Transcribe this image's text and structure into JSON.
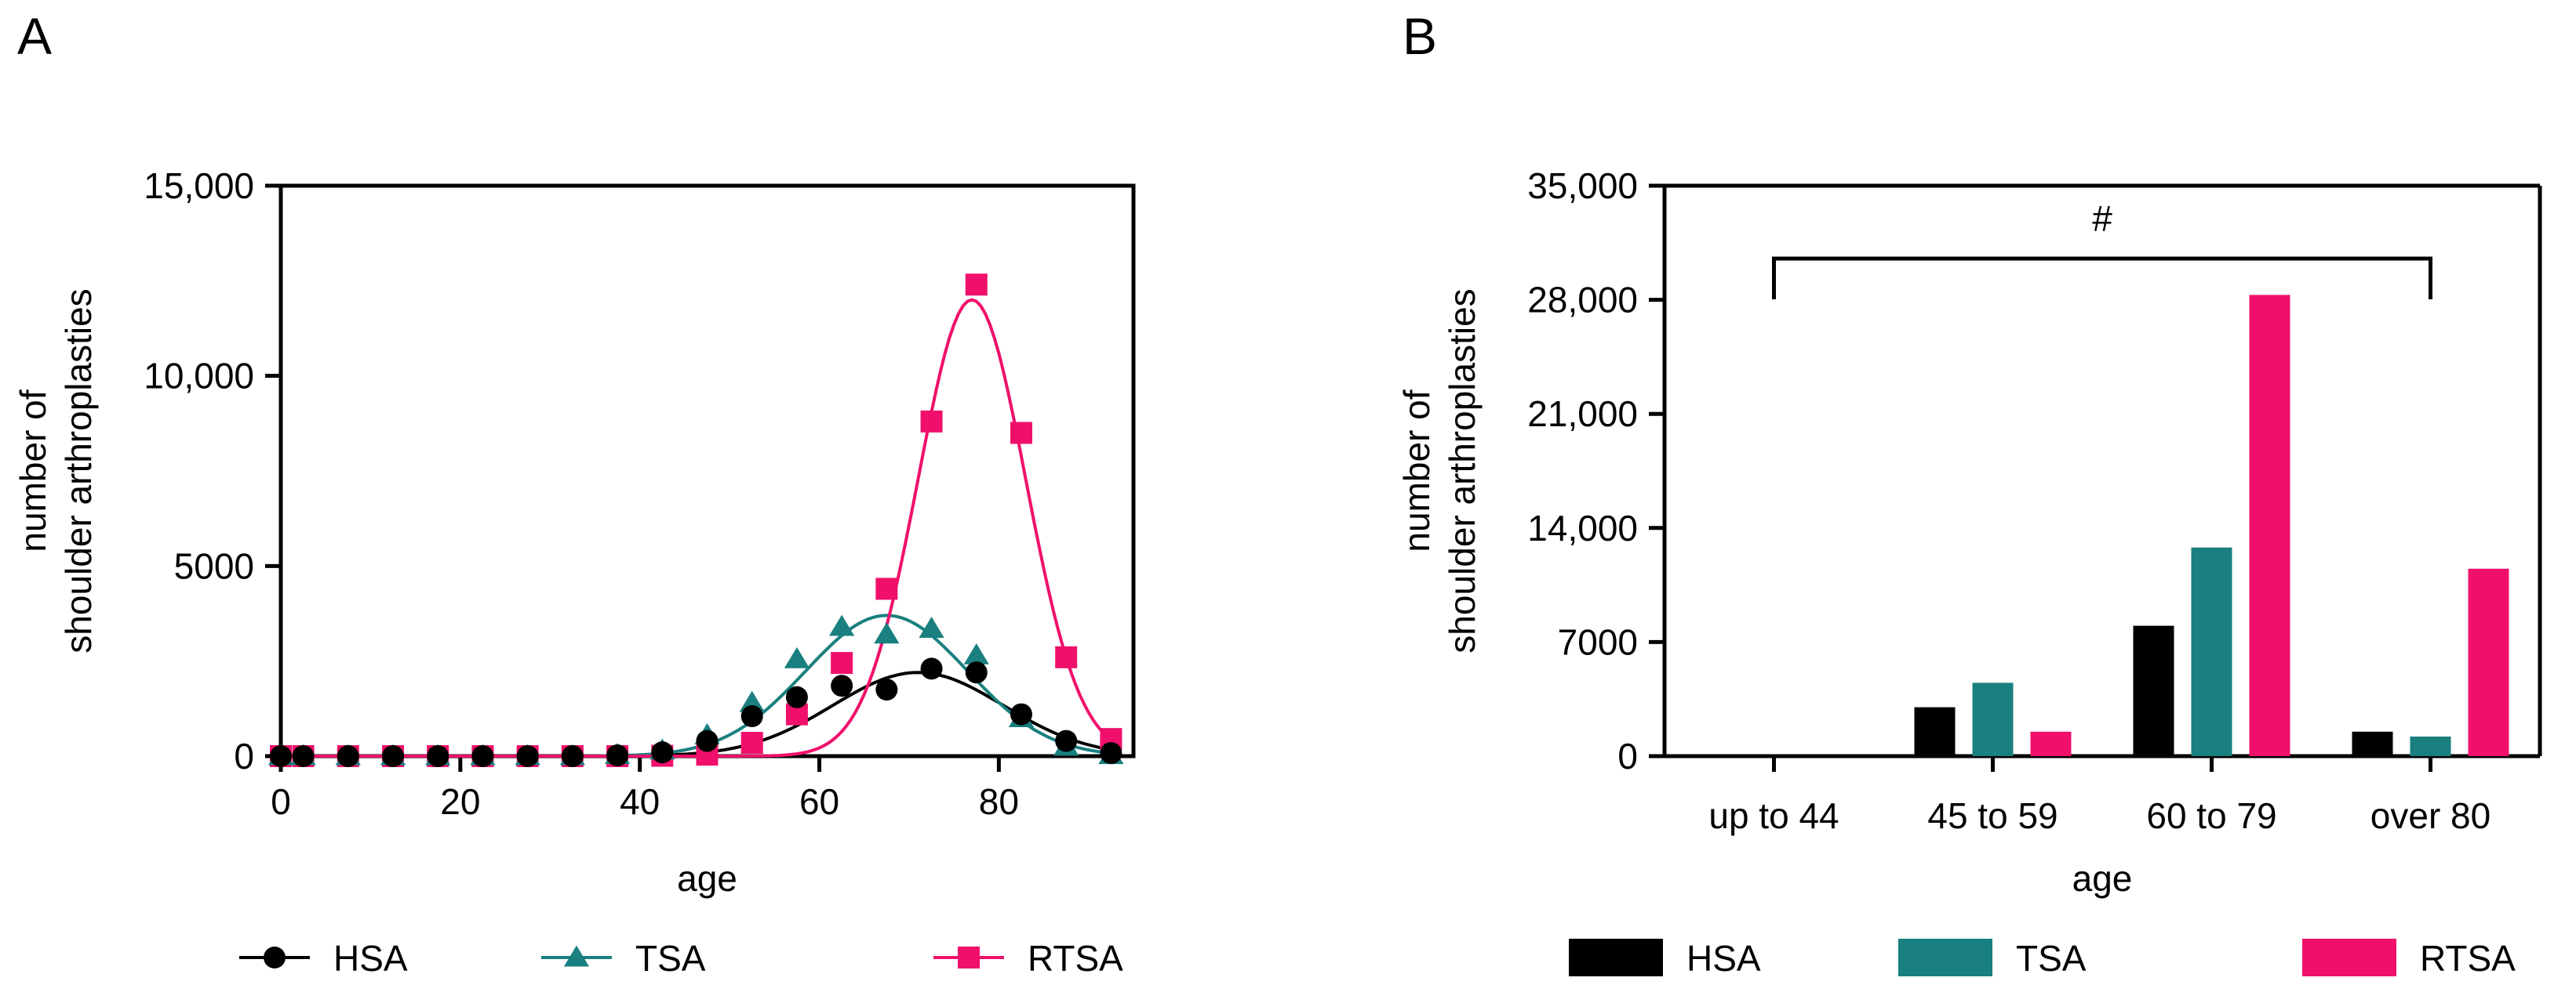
{
  "panels": {
    "a_letter": "A",
    "b_letter": "B"
  },
  "colors": {
    "HSA": "#000000",
    "TSA": "#1a7f7f",
    "RTSA": "#f0106b"
  },
  "chart_data": [
    {
      "type": "scatter",
      "xlabel": "age",
      "ylabel_line1": "number of",
      "ylabel_line2": "shoulder arthroplasties",
      "xlim": [
        0,
        95
      ],
      "ylim": [
        0,
        15000
      ],
      "xticks": [
        0,
        20,
        40,
        60,
        80
      ],
      "xtick_labels": [
        "0",
        "20",
        "40",
        "60",
        "80"
      ],
      "yticks": [
        0,
        5000,
        10000,
        15000
      ],
      "ytick_labels": [
        "0",
        "5000",
        "10,000",
        "15,000"
      ],
      "legend_position": "bottom",
      "series": [
        {
          "name": "HSA",
          "marker": "circle",
          "color": "#000000",
          "x": [
            0,
            2.5,
            7.5,
            12.5,
            17.5,
            22.5,
            27.5,
            32.5,
            37.5,
            42.5,
            47.5,
            52.5,
            57.5,
            62.5,
            67.5,
            72.5,
            77.5,
            82.5,
            87.5,
            92.5
          ],
          "y": [
            0,
            0,
            0,
            0,
            0,
            0,
            0,
            0,
            20,
            100,
            400,
            1050,
            1550,
            1850,
            1750,
            2300,
            2200,
            1100,
            400,
            80
          ],
          "fit": {
            "type": "gaussian",
            "amplitude": 2200,
            "mean": 71,
            "sd": 9.5
          }
        },
        {
          "name": "TSA",
          "marker": "triangle",
          "color": "#1a7f7f",
          "x": [
            0,
            2.5,
            7.5,
            12.5,
            17.5,
            22.5,
            27.5,
            32.5,
            37.5,
            42.5,
            47.5,
            52.5,
            57.5,
            62.5,
            67.5,
            72.5,
            77.5,
            82.5,
            87.5,
            92.5
          ],
          "y": [
            0,
            0,
            0,
            0,
            0,
            0,
            0,
            0,
            30,
            150,
            550,
            1400,
            2550,
            3400,
            3200,
            3350,
            2650,
            1000,
            250,
            30
          ],
          "fit": {
            "type": "gaussian",
            "amplitude": 3700,
            "mean": 67.5,
            "sd": 9
          }
        },
        {
          "name": "RTSA",
          "marker": "square",
          "color": "#f0106b",
          "x": [
            0,
            2.5,
            7.5,
            12.5,
            17.5,
            22.5,
            27.5,
            32.5,
            37.5,
            42.5,
            47.5,
            52.5,
            57.5,
            62.5,
            67.5,
            72.5,
            77.5,
            82.5,
            87.5,
            92.5
          ],
          "y": [
            0,
            0,
            0,
            0,
            0,
            0,
            0,
            0,
            0,
            10,
            40,
            350,
            1100,
            2450,
            4400,
            8800,
            12400,
            8500,
            2600,
            450
          ],
          "fit": {
            "type": "gaussian",
            "amplitude": 12000,
            "mean": 77,
            "sd": 6
          }
        }
      ]
    },
    {
      "type": "bar",
      "xlabel": "age",
      "ylabel_line1": "number of",
      "ylabel_line2": "shoulder arthroplasties",
      "ylim": [
        0,
        35000
      ],
      "yticks": [
        0,
        7000,
        14000,
        21000,
        28000,
        35000
      ],
      "ytick_labels": [
        "0",
        "7000",
        "14,000",
        "21,000",
        "28,000",
        "35,000"
      ],
      "categories": [
        "up to 44",
        "45 to 59",
        "60 to 79",
        "over 80"
      ],
      "legend_position": "bottom",
      "annotation": "#",
      "series": [
        {
          "name": "HSA",
          "color": "#000000",
          "values": [
            0,
            3000,
            8000,
            1500
          ]
        },
        {
          "name": "TSA",
          "color": "#1a7f7f",
          "values": [
            0,
            4500,
            12800,
            1200
          ]
        },
        {
          "name": "RTSA",
          "color": "#f0106b",
          "values": [
            0,
            1500,
            28300,
            11500
          ]
        }
      ]
    }
  ]
}
